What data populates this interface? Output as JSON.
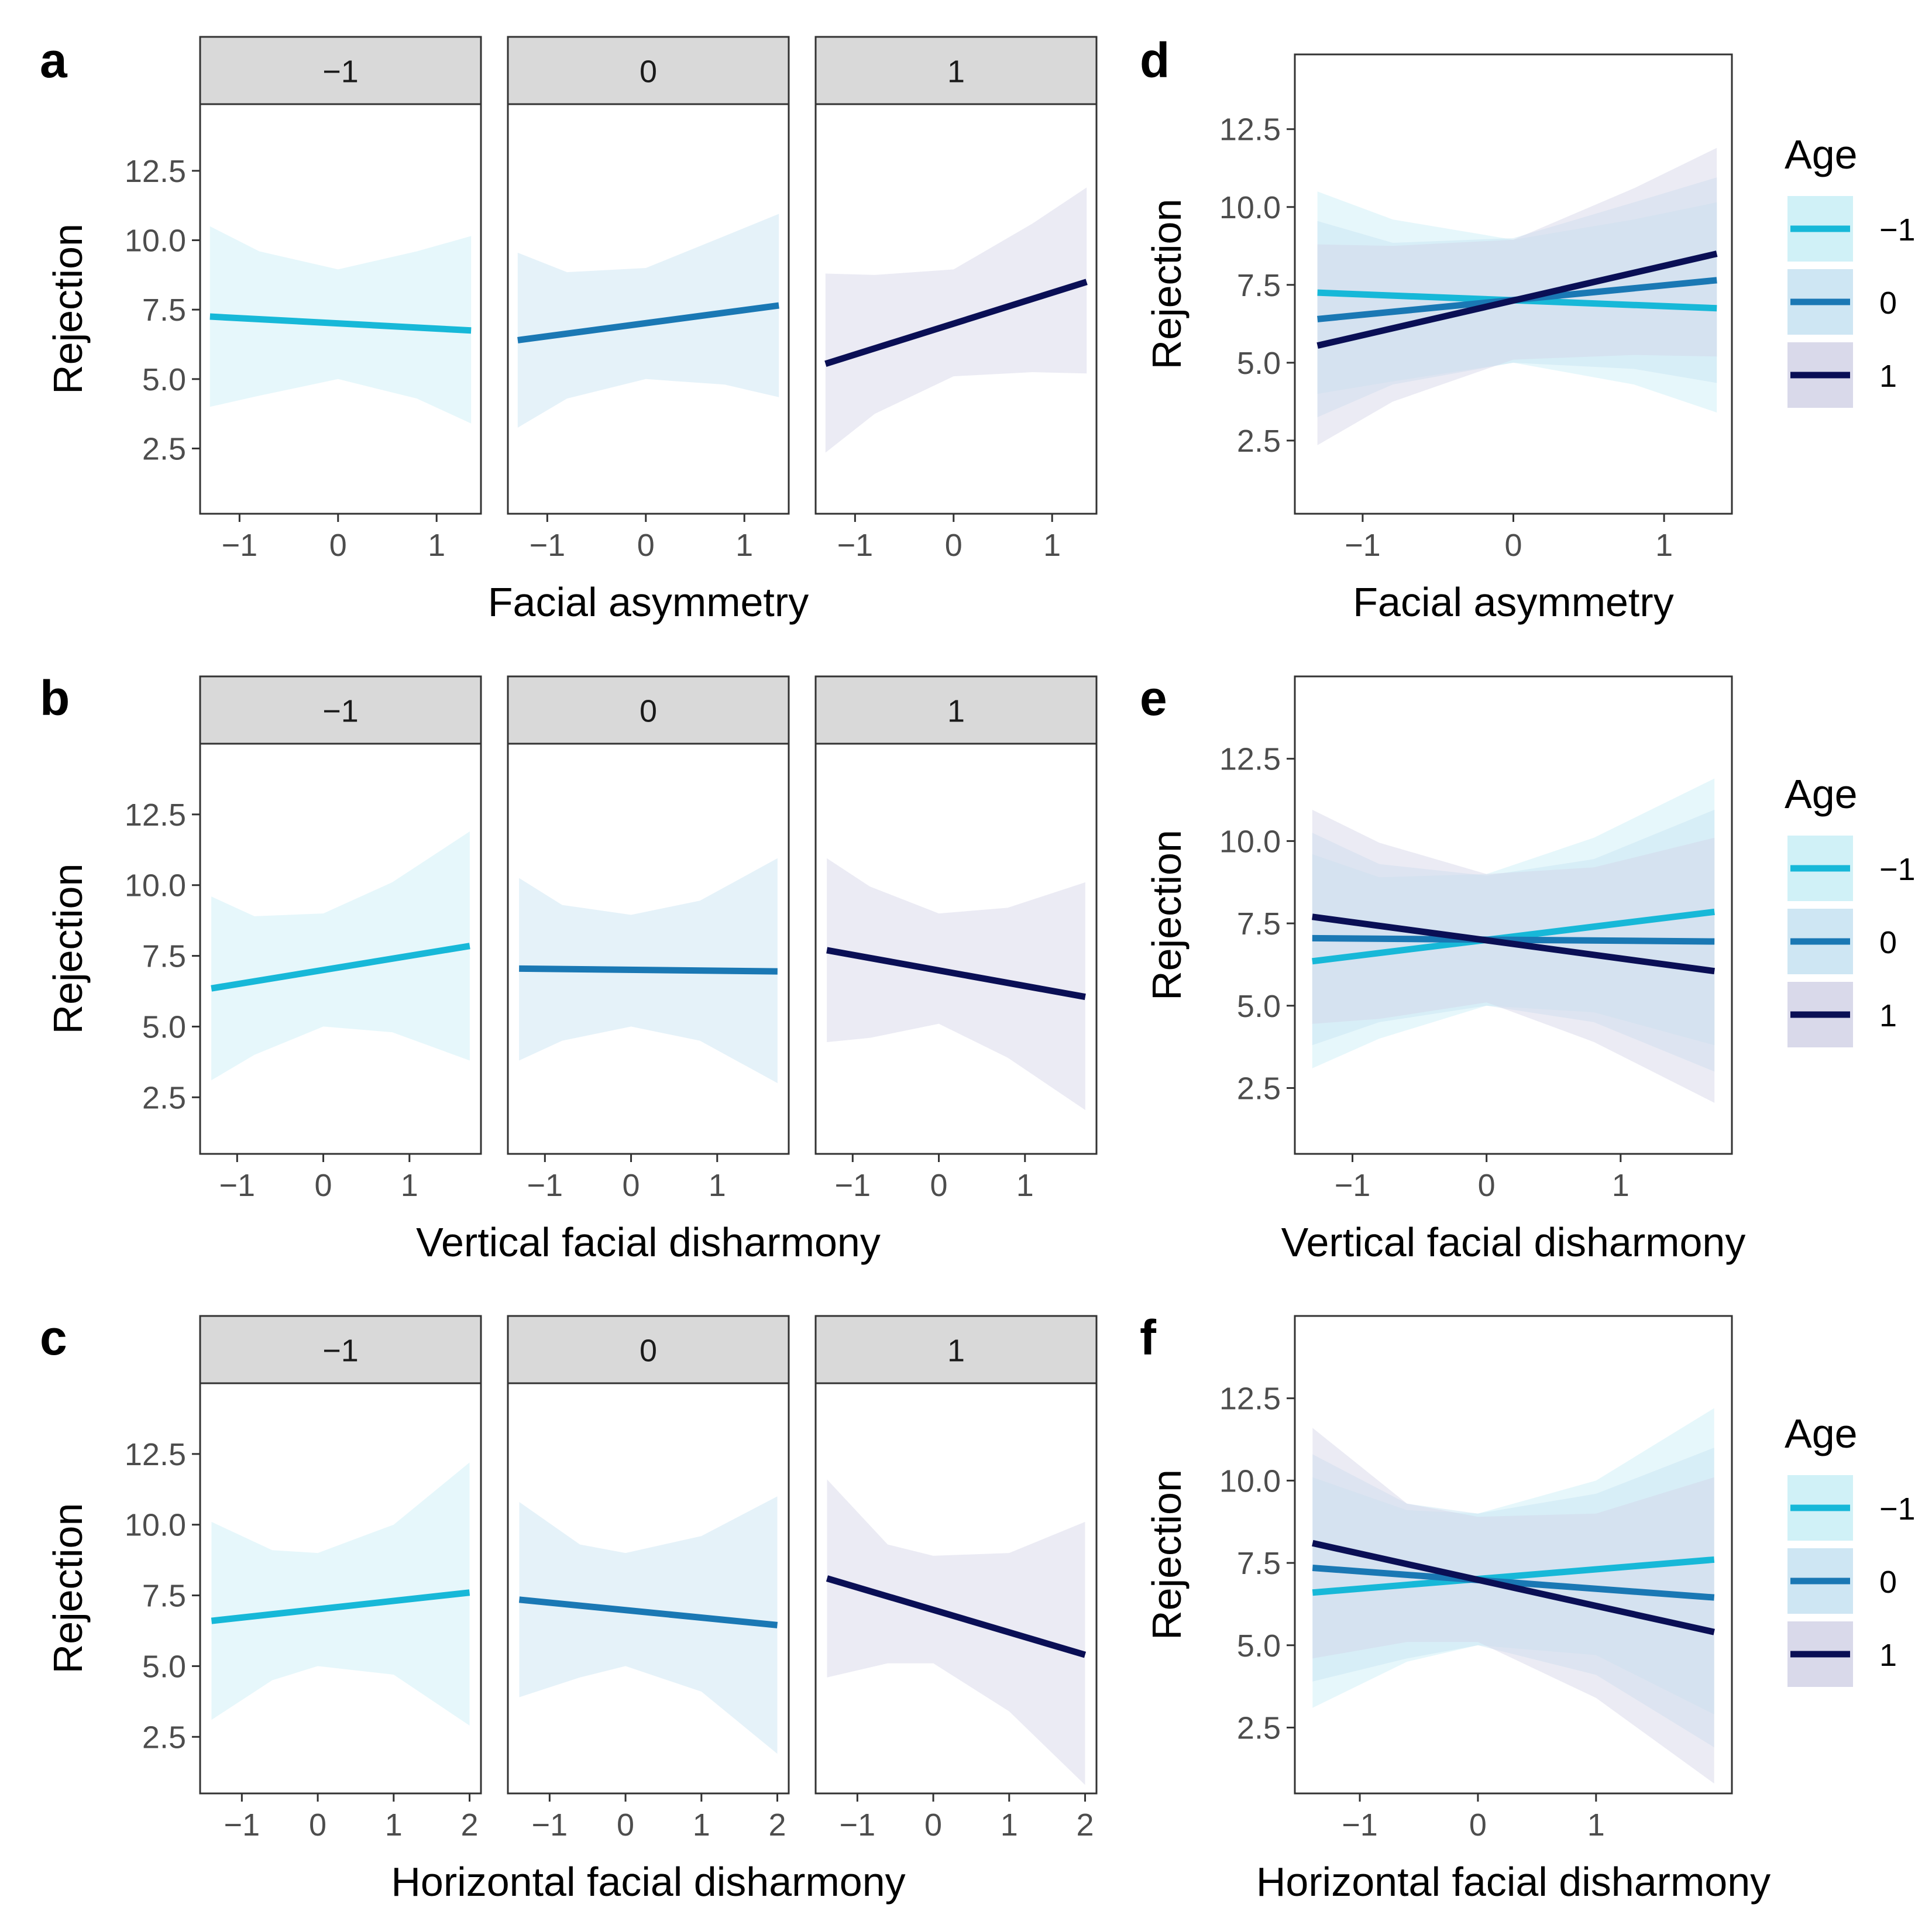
{
  "colors": {
    "age_m1": "#17b8d8",
    "age_0": "#1a78b4",
    "age_1": "#0a0f55",
    "fill_m1": "#c8eef6",
    "fill_0": "#c6e2f1",
    "fill_1": "#d2d2e6",
    "strip_bg": "#d9d9d9",
    "frame": "#333333"
  },
  "strip_labels": [
    "−1",
    "0",
    "1"
  ],
  "legend": {
    "title": "Age",
    "entries": [
      "−1",
      "0",
      "1"
    ]
  },
  "chart_data": [
    {
      "panel": "a",
      "type": "line",
      "layout": "facet",
      "xlabel": "Facial asymmetry",
      "ylabel": "Rejection",
      "xlim": [
        -1.4,
        1.45
      ],
      "ylim": [
        0.15,
        14.9
      ],
      "xticks": [
        -1,
        0,
        1
      ],
      "xtick_labels": [
        "−1",
        "0",
        "1"
      ],
      "yticks": [
        2.5,
        5.0,
        7.5,
        10.0,
        12.5
      ],
      "ytick_labels": [
        "2.5",
        "5.0",
        "7.5",
        "10.0",
        "12.5"
      ],
      "series": [
        {
          "name": "−1",
          "x": [
            -1.3,
            1.35
          ],
          "y": [
            7.25,
            6.75
          ],
          "band_x": [
            -1.3,
            -0.8,
            0,
            0.8,
            1.35
          ],
          "band_lower": [
            4.0,
            4.4,
            5.0,
            4.3,
            3.4
          ],
          "band_upper": [
            10.5,
            9.6,
            8.95,
            9.6,
            10.15
          ]
        },
        {
          "name": "0",
          "x": [
            -1.3,
            1.35
          ],
          "y": [
            6.4,
            7.65
          ],
          "band_x": [
            -1.3,
            -0.8,
            0,
            0.8,
            1.35
          ],
          "band_lower": [
            3.25,
            4.3,
            5.0,
            4.8,
            4.35
          ],
          "band_upper": [
            9.55,
            8.85,
            9.0,
            10.15,
            10.95
          ]
        },
        {
          "name": "1",
          "x": [
            -1.3,
            1.35
          ],
          "y": [
            5.55,
            8.5
          ],
          "band_x": [
            -1.3,
            -0.8,
            0,
            0.8,
            1.35
          ],
          "band_lower": [
            2.35,
            3.75,
            5.1,
            5.25,
            5.2
          ],
          "band_upper": [
            8.8,
            8.75,
            8.95,
            10.6,
            11.9
          ]
        }
      ]
    },
    {
      "panel": "b",
      "type": "line",
      "layout": "facet",
      "xlabel": "Vertical facial disharmony",
      "ylabel": "Rejection",
      "xlim": [
        -1.43,
        1.83
      ],
      "ylim": [
        0.5,
        15.0
      ],
      "xticks": [
        -1,
        0,
        1
      ],
      "xtick_labels": [
        "−1",
        "0",
        "1"
      ],
      "yticks": [
        2.5,
        5.0,
        7.5,
        10.0,
        12.5
      ],
      "ytick_labels": [
        "2.5",
        "5.0",
        "7.5",
        "10.0",
        "12.5"
      ],
      "series": [
        {
          "name": "−1",
          "x": [
            -1.3,
            1.7
          ],
          "y": [
            6.35,
            7.85
          ],
          "band_x": [
            -1.3,
            -0.8,
            0,
            0.8,
            1.7
          ],
          "band_lower": [
            3.1,
            4.0,
            5.0,
            4.8,
            3.8
          ],
          "band_upper": [
            9.6,
            8.9,
            9.0,
            10.1,
            11.9
          ]
        },
        {
          "name": "0",
          "x": [
            -1.3,
            1.7
          ],
          "y": [
            7.05,
            6.95
          ],
          "band_x": [
            -1.3,
            -0.8,
            0,
            0.8,
            1.7
          ],
          "band_lower": [
            3.8,
            4.5,
            5.0,
            4.5,
            3.0
          ],
          "band_upper": [
            10.25,
            9.3,
            8.95,
            9.45,
            10.95
          ]
        },
        {
          "name": "1",
          "x": [
            -1.3,
            1.7
          ],
          "y": [
            7.7,
            6.05
          ],
          "band_x": [
            -1.3,
            -0.8,
            0,
            0.8,
            1.7
          ],
          "band_lower": [
            4.45,
            4.6,
            5.1,
            3.9,
            2.05
          ],
          "band_upper": [
            10.95,
            9.95,
            9.0,
            9.2,
            10.1
          ]
        }
      ]
    },
    {
      "panel": "c",
      "type": "line",
      "layout": "facet",
      "xlabel": "Horizontal facial disharmony",
      "ylabel": "Rejection",
      "xlim": [
        -1.55,
        2.15
      ],
      "ylim": [
        0.5,
        15.0
      ],
      "xticks": [
        -1,
        0,
        1,
        2
      ],
      "xtick_labels": [
        "−1",
        "0",
        "1",
        "2"
      ],
      "yticks": [
        2.5,
        5.0,
        7.5,
        10.0,
        12.5
      ],
      "ytick_labels": [
        "2.5",
        "5.0",
        "7.5",
        "10.0",
        "12.5"
      ],
      "series": [
        {
          "name": "−1",
          "x": [
            -1.4,
            2.0
          ],
          "y": [
            6.6,
            7.6
          ],
          "band_x": [
            -1.4,
            -0.6,
            0,
            1.0,
            2.0
          ],
          "band_lower": [
            3.1,
            4.5,
            5.0,
            4.7,
            2.9
          ],
          "band_upper": [
            10.1,
            9.1,
            9.0,
            10.0,
            12.2
          ]
        },
        {
          "name": "0",
          "x": [
            -1.4,
            2.0
          ],
          "y": [
            7.35,
            6.45
          ],
          "band_x": [
            -1.4,
            -0.6,
            0,
            1.0,
            2.0
          ],
          "band_lower": [
            3.9,
            4.6,
            5.0,
            4.1,
            1.9
          ],
          "band_upper": [
            10.8,
            9.3,
            9.0,
            9.6,
            11.0
          ]
        },
        {
          "name": "1",
          "x": [
            -1.4,
            2.0
          ],
          "y": [
            8.1,
            5.4
          ],
          "band_x": [
            -1.4,
            -0.6,
            0,
            1.0,
            2.0
          ],
          "band_lower": [
            4.6,
            5.1,
            5.1,
            3.4,
            0.8
          ],
          "band_upper": [
            11.6,
            9.3,
            8.9,
            9.0,
            10.1
          ]
        }
      ]
    },
    {
      "panel": "d",
      "type": "line",
      "layout": "overlay",
      "xlabel": "Facial asymmetry",
      "ylabel": "Rejection",
      "xlim": [
        -1.45,
        1.45
      ],
      "ylim": [
        0.15,
        14.9
      ],
      "xticks": [
        -1,
        0,
        1
      ],
      "xtick_labels": [
        "−1",
        "0",
        "1"
      ],
      "yticks": [
        2.5,
        5.0,
        7.5,
        10.0,
        12.5
      ],
      "ytick_labels": [
        "2.5",
        "5.0",
        "7.5",
        "10.0",
        "12.5"
      ],
      "series": [
        {
          "name": "−1",
          "x": [
            -1.3,
            1.35
          ],
          "y": [
            7.25,
            6.75
          ],
          "band_x": [
            -1.3,
            -0.8,
            0,
            0.8,
            1.35
          ],
          "band_lower": [
            4.0,
            4.4,
            5.0,
            4.3,
            3.4
          ],
          "band_upper": [
            10.5,
            9.6,
            8.95,
            9.6,
            10.15
          ]
        },
        {
          "name": "0",
          "x": [
            -1.3,
            1.35
          ],
          "y": [
            6.4,
            7.65
          ],
          "band_x": [
            -1.3,
            -0.8,
            0,
            0.8,
            1.35
          ],
          "band_lower": [
            3.25,
            4.3,
            5.0,
            4.8,
            4.35
          ],
          "band_upper": [
            9.55,
            8.85,
            9.0,
            10.15,
            10.95
          ]
        },
        {
          "name": "1",
          "x": [
            -1.3,
            1.35
          ],
          "y": [
            5.55,
            8.5
          ],
          "band_x": [
            -1.3,
            -0.8,
            0,
            0.8,
            1.35
          ],
          "band_lower": [
            2.35,
            3.75,
            5.1,
            5.25,
            5.2
          ],
          "band_upper": [
            8.8,
            8.75,
            8.95,
            10.6,
            11.9
          ]
        }
      ]
    },
    {
      "panel": "e",
      "type": "line",
      "layout": "overlay",
      "xlabel": "Vertical facial disharmony",
      "ylabel": "Rejection",
      "xlim": [
        -1.43,
        1.83
      ],
      "ylim": [
        0.5,
        15.0
      ],
      "xticks": [
        -1,
        0,
        1
      ],
      "xtick_labels": [
        "−1",
        "0",
        "1"
      ],
      "yticks": [
        2.5,
        5.0,
        7.5,
        10.0,
        12.5
      ],
      "ytick_labels": [
        "2.5",
        "5.0",
        "7.5",
        "10.0",
        "12.5"
      ],
      "series": [
        {
          "name": "−1",
          "x": [
            -1.3,
            1.7
          ],
          "y": [
            6.35,
            7.85
          ],
          "band_x": [
            -1.3,
            -0.8,
            0,
            0.8,
            1.7
          ],
          "band_lower": [
            3.1,
            4.0,
            5.0,
            4.8,
            3.8
          ],
          "band_upper": [
            9.6,
            8.9,
            9.0,
            10.1,
            11.9
          ]
        },
        {
          "name": "0",
          "x": [
            -1.3,
            1.7
          ],
          "y": [
            7.05,
            6.95
          ],
          "band_x": [
            -1.3,
            -0.8,
            0,
            0.8,
            1.7
          ],
          "band_lower": [
            3.8,
            4.5,
            5.0,
            4.5,
            3.0
          ],
          "band_upper": [
            10.25,
            9.3,
            8.95,
            9.45,
            10.95
          ]
        },
        {
          "name": "1",
          "x": [
            -1.3,
            1.7
          ],
          "y": [
            7.7,
            6.05
          ],
          "band_x": [
            -1.3,
            -0.8,
            0,
            0.8,
            1.7
          ],
          "band_lower": [
            4.45,
            4.6,
            5.1,
            3.9,
            2.05
          ],
          "band_upper": [
            10.95,
            9.95,
            9.0,
            9.2,
            10.1
          ]
        }
      ]
    },
    {
      "panel": "f",
      "type": "line",
      "layout": "overlay",
      "xlabel": "Horizontal facial disharmony",
      "ylabel": "Rejection",
      "xlim": [
        -1.55,
        2.15
      ],
      "ylim": [
        0.5,
        15.0
      ],
      "xticks": [
        -1,
        0,
        1
      ],
      "xtick_labels": [
        "−1",
        "0",
        "1"
      ],
      "yticks": [
        2.5,
        5.0,
        7.5,
        10.0,
        12.5
      ],
      "ytick_labels": [
        "2.5",
        "5.0",
        "7.5",
        "10.0",
        "12.5"
      ],
      "series": [
        {
          "name": "−1",
          "x": [
            -1.4,
            2.0
          ],
          "y": [
            6.6,
            7.6
          ],
          "band_x": [
            -1.4,
            -0.6,
            0,
            1.0,
            2.0
          ],
          "band_lower": [
            3.1,
            4.5,
            5.0,
            4.7,
            2.9
          ],
          "band_upper": [
            10.1,
            9.1,
            9.0,
            10.0,
            12.2
          ]
        },
        {
          "name": "0",
          "x": [
            -1.4,
            2.0
          ],
          "y": [
            7.35,
            6.45
          ],
          "band_x": [
            -1.4,
            -0.6,
            0,
            1.0,
            2.0
          ],
          "band_lower": [
            3.9,
            4.6,
            5.0,
            4.1,
            1.9
          ],
          "band_upper": [
            10.8,
            9.3,
            9.0,
            9.6,
            11.0
          ]
        },
        {
          "name": "1",
          "x": [
            -1.4,
            2.0
          ],
          "y": [
            8.1,
            5.4
          ],
          "band_x": [
            -1.4,
            -0.6,
            0,
            1.0,
            2.0
          ],
          "band_lower": [
            4.6,
            5.1,
            5.1,
            3.4,
            0.8
          ],
          "band_upper": [
            11.6,
            9.3,
            8.9,
            9.0,
            10.1
          ]
        }
      ]
    }
  ]
}
